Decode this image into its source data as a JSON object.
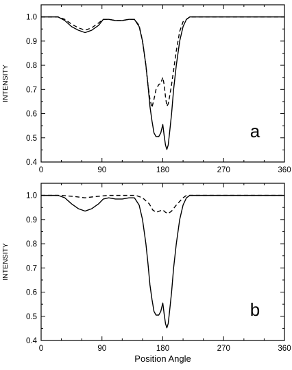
{
  "chart_data": [
    {
      "type": "line",
      "panel_label": "a",
      "ylabel": "INTENSITY",
      "xlabel": "",
      "xlim": [
        0,
        360
      ],
      "ylim": [
        0.4,
        1.05
      ],
      "xticks": [
        0,
        90,
        180,
        270,
        360
      ],
      "yticks": [
        0.4,
        0.5,
        0.6,
        0.7,
        0.8,
        0.9,
        1.0
      ],
      "xtick_labels": [
        "0",
        "90",
        "180",
        "270",
        "360"
      ],
      "ytick_labels": [
        "0.4",
        "0.5",
        "0.6",
        "0.7",
        "0.8",
        "0.9",
        "1.0"
      ],
      "grid": false,
      "series": [
        {
          "style": "solid",
          "x": [
            0,
            25,
            35,
            45,
            55,
            65,
            75,
            85,
            92,
            100,
            110,
            120,
            130,
            138,
            145,
            150,
            155,
            158,
            161,
            164,
            167,
            170,
            174,
            177,
            180,
            182,
            184,
            186,
            188,
            190,
            193,
            196,
            200,
            205,
            210,
            215,
            220,
            360
          ],
          "y": [
            1.0,
            1.0,
            0.985,
            0.96,
            0.945,
            0.935,
            0.945,
            0.965,
            0.99,
            0.99,
            0.985,
            0.985,
            0.99,
            0.99,
            0.96,
            0.9,
            0.8,
            0.72,
            0.63,
            0.57,
            0.52,
            0.505,
            0.505,
            0.52,
            0.555,
            0.51,
            0.47,
            0.452,
            0.47,
            0.52,
            0.6,
            0.7,
            0.8,
            0.9,
            0.96,
            0.99,
            1.0,
            1.0
          ]
        },
        {
          "style": "dashed",
          "x": [
            0,
            25,
            35,
            45,
            55,
            65,
            75,
            85,
            92,
            100,
            110,
            120,
            130,
            138,
            145,
            150,
            155,
            158,
            161,
            164,
            167,
            170,
            174,
            177,
            180,
            182,
            184,
            186,
            188,
            190,
            193,
            196,
            200,
            205,
            210,
            215,
            220,
            360
          ],
          "y": [
            1.0,
            1.0,
            0.99,
            0.97,
            0.955,
            0.945,
            0.955,
            0.975,
            0.99,
            0.99,
            0.985,
            0.985,
            0.99,
            0.99,
            0.965,
            0.9,
            0.8,
            0.72,
            0.66,
            0.625,
            0.66,
            0.7,
            0.72,
            0.725,
            0.75,
            0.72,
            0.67,
            0.63,
            0.64,
            0.67,
            0.72,
            0.78,
            0.86,
            0.94,
            0.98,
            0.99,
            1.0,
            1.0
          ]
        }
      ]
    },
    {
      "type": "line",
      "panel_label": "b",
      "ylabel": "INTENSITY",
      "xlabel": "Position Angle",
      "xlim": [
        0,
        360
      ],
      "ylim": [
        0.4,
        1.05
      ],
      "xticks": [
        0,
        90,
        180,
        270,
        360
      ],
      "yticks": [
        0.4,
        0.5,
        0.6,
        0.7,
        0.8,
        0.9,
        1.0
      ],
      "xtick_labels": [
        "0",
        "90",
        "180",
        "270",
        "360"
      ],
      "ytick_labels": [
        "0.4",
        "0.5",
        "0.6",
        "0.7",
        "0.8",
        "0.9",
        "1.0"
      ],
      "grid": false,
      "series": [
        {
          "style": "solid",
          "x": [
            0,
            25,
            35,
            45,
            55,
            65,
            75,
            85,
            92,
            100,
            110,
            120,
            130,
            138,
            145,
            150,
            155,
            158,
            161,
            164,
            167,
            170,
            174,
            177,
            180,
            182,
            184,
            186,
            188,
            190,
            193,
            196,
            200,
            205,
            210,
            215,
            220,
            360
          ],
          "y": [
            1.0,
            1.0,
            0.99,
            0.965,
            0.945,
            0.935,
            0.945,
            0.965,
            0.985,
            0.99,
            0.985,
            0.985,
            0.99,
            0.99,
            0.96,
            0.9,
            0.8,
            0.72,
            0.63,
            0.57,
            0.52,
            0.505,
            0.505,
            0.52,
            0.555,
            0.51,
            0.47,
            0.452,
            0.47,
            0.52,
            0.6,
            0.7,
            0.8,
            0.9,
            0.96,
            0.99,
            1.0,
            1.0
          ]
        },
        {
          "style": "dashed",
          "x": [
            0,
            30,
            50,
            65,
            80,
            100,
            120,
            140,
            150,
            160,
            165,
            170,
            175,
            180,
            184,
            188,
            193,
            200,
            210,
            215,
            220,
            360
          ],
          "y": [
            1.0,
            1.0,
            0.995,
            0.99,
            0.995,
            1.0,
            1.0,
            1.0,
            0.99,
            0.965,
            0.94,
            0.93,
            0.935,
            0.94,
            0.93,
            0.925,
            0.935,
            0.96,
            0.99,
            1.0,
            1.0,
            1.0
          ]
        }
      ]
    }
  ]
}
